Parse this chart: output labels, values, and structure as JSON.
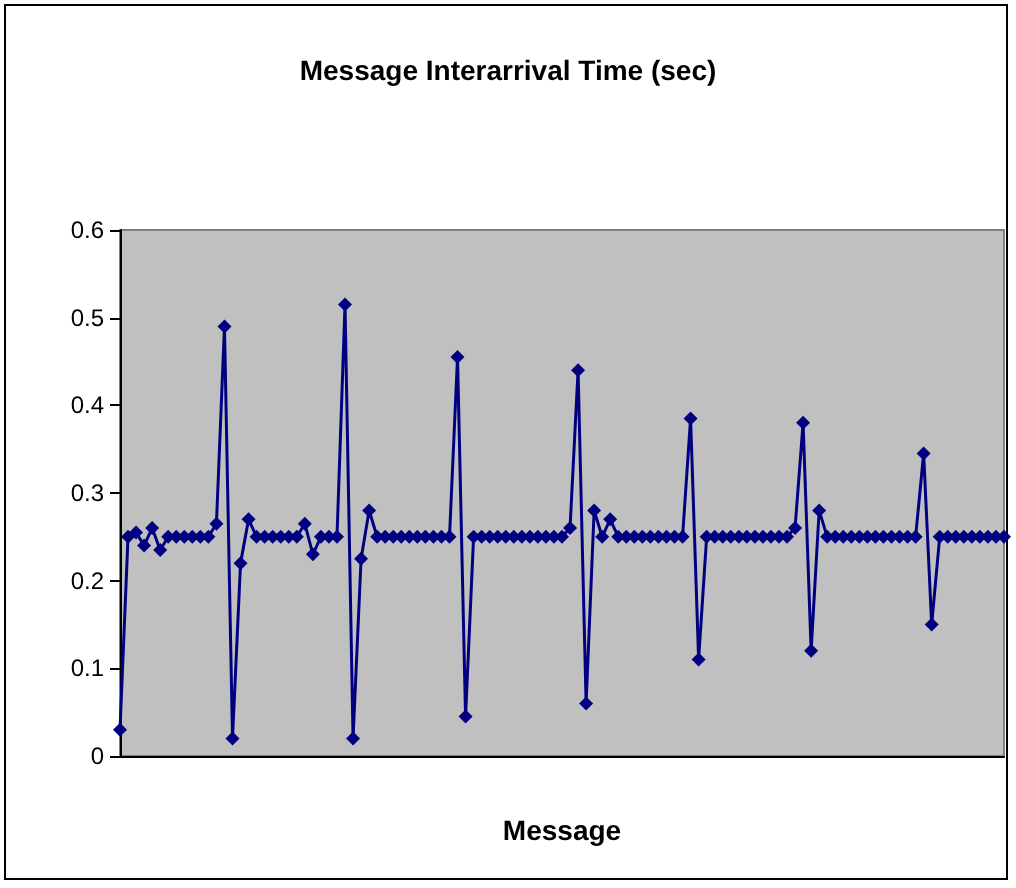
{
  "chart_data": {
    "type": "line",
    "title": "Message Interarrival Time (sec)",
    "xlabel": "Message",
    "marker": "diamond",
    "grid": false,
    "categories": [
      null,
      null,
      null,
      null,
      null,
      null,
      null,
      null,
      null,
      null,
      null,
      null,
      null,
      null,
      null,
      null,
      null,
      null,
      null,
      null,
      null,
      null,
      null,
      null,
      null,
      null,
      null,
      null,
      null,
      null,
      null,
      null,
      null,
      null,
      null,
      null,
      null,
      null,
      null,
      null,
      null,
      null,
      null,
      null,
      null,
      null,
      null,
      null,
      null,
      null,
      null,
      null,
      null,
      null,
      null,
      null,
      null,
      null,
      null,
      null,
      null,
      null,
      null,
      null,
      null,
      null,
      null,
      null,
      null,
      null,
      null,
      null,
      null,
      null,
      null,
      null,
      null,
      null,
      null,
      null,
      null,
      null,
      null,
      null,
      null,
      null,
      null,
      null,
      null,
      null,
      null,
      null,
      null,
      null,
      null,
      null,
      null,
      null,
      null,
      null,
      null,
      null,
      null,
      null,
      null,
      null,
      null,
      null,
      null,
      null,
      null
    ],
    "series": [
      {
        "color": "#000080",
        "values": [
          0.03,
          0.25,
          0.255,
          0.24,
          0.26,
          0.235,
          0.25,
          0.25,
          0.25,
          0.25,
          0.25,
          0.25,
          0.265,
          0.49,
          0.02,
          0.22,
          0.27,
          0.25,
          0.25,
          0.25,
          0.25,
          0.25,
          0.25,
          0.265,
          0.23,
          0.25,
          0.25,
          0.25,
          0.515,
          0.02,
          0.225,
          0.28,
          0.25,
          0.25,
          0.25,
          0.25,
          0.25,
          0.25,
          0.25,
          0.25,
          0.25,
          0.25,
          0.455,
          0.045,
          0.25,
          0.25,
          0.25,
          0.25,
          0.25,
          0.25,
          0.25,
          0.25,
          0.25,
          0.25,
          0.25,
          0.25,
          0.26,
          0.44,
          0.06,
          0.28,
          0.25,
          0.27,
          0.25,
          0.25,
          0.25,
          0.25,
          0.25,
          0.25,
          0.25,
          0.25,
          0.25,
          0.385,
          0.11,
          0.25,
          0.25,
          0.25,
          0.25,
          0.25,
          0.25,
          0.25,
          0.25,
          0.25,
          0.25,
          0.25,
          0.26,
          0.38,
          0.12,
          0.28,
          0.25,
          0.25,
          0.25,
          0.25,
          0.25,
          0.25,
          0.25,
          0.25,
          0.25,
          0.25,
          0.25,
          0.25,
          0.345,
          0.15,
          0.25,
          0.25,
          0.25,
          0.25,
          0.25,
          0.25,
          0.25,
          0.25,
          0.25
        ]
      }
    ],
    "ylim": [
      0,
      0.6
    ],
    "yticks": [
      0,
      0.1,
      0.2,
      0.3,
      0.4,
      0.5,
      0.6
    ]
  }
}
